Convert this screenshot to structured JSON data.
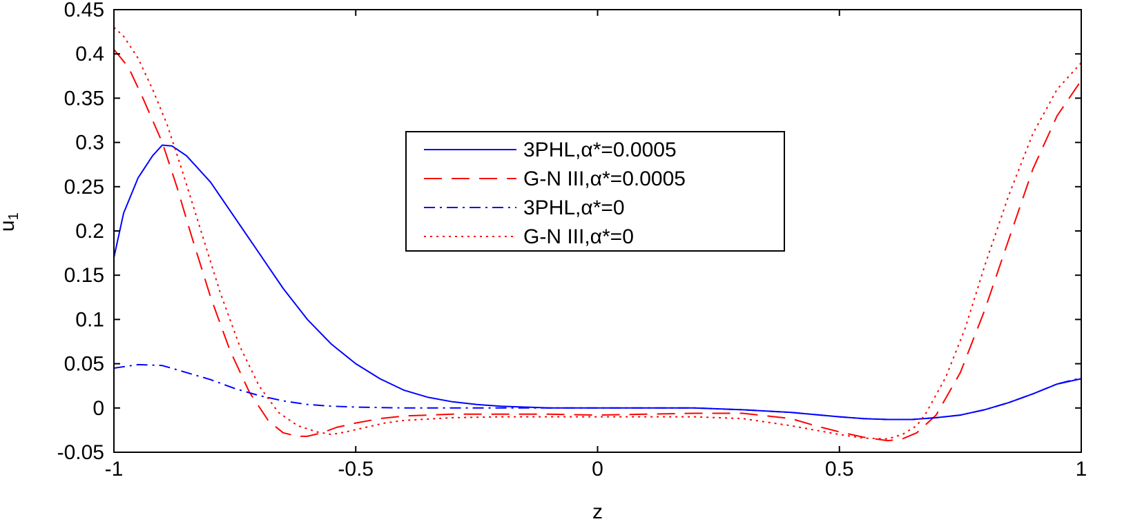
{
  "chart_data": {
    "type": "line",
    "title": "",
    "xlabel": "z",
    "ylabel": "u",
    "ylabel_subscript": "1",
    "xlim": [
      -1,
      1
    ],
    "ylim": [
      -0.05,
      0.45
    ],
    "xticks": [
      -1,
      -0.5,
      0,
      0.5,
      1
    ],
    "xtick_labels": [
      "-1",
      "-0.5",
      "0",
      "0.5",
      "1"
    ],
    "yticks": [
      -0.05,
      0,
      0.05,
      0.1,
      0.15,
      0.2,
      0.25,
      0.3,
      0.35,
      0.4,
      0.45
    ],
    "ytick_labels": [
      "-0.05",
      "0",
      "0.05",
      "0.1",
      "0.15",
      "0.2",
      "0.25",
      "0.3",
      "0.35",
      "0.4",
      "0.45"
    ],
    "grid": false,
    "legend_position": "top-center",
    "series": [
      {
        "name": "3PHL,α*=0.0005",
        "color": "#0000ff",
        "dash": "solid",
        "x": [
          -1,
          -0.98,
          -0.95,
          -0.92,
          -0.9,
          -0.88,
          -0.85,
          -0.8,
          -0.75,
          -0.7,
          -0.65,
          -0.6,
          -0.55,
          -0.5,
          -0.45,
          -0.4,
          -0.35,
          -0.3,
          -0.25,
          -0.2,
          -0.1,
          0,
          0.1,
          0.2,
          0.3,
          0.4,
          0.5,
          0.55,
          0.6,
          0.65,
          0.7,
          0.75,
          0.8,
          0.85,
          0.9,
          0.95,
          1
        ],
        "y": [
          0.17,
          0.22,
          0.26,
          0.285,
          0.297,
          0.296,
          0.285,
          0.255,
          0.215,
          0.175,
          0.135,
          0.1,
          0.072,
          0.05,
          0.033,
          0.02,
          0.012,
          0.007,
          0.004,
          0.002,
          0,
          0,
          0,
          0,
          -0.002,
          -0.005,
          -0.01,
          -0.012,
          -0.013,
          -0.013,
          -0.011,
          -0.008,
          -0.002,
          0.006,
          0.016,
          0.027,
          0.033
        ]
      },
      {
        "name": "G-N III,α*=0.0005",
        "color": "#ff0000",
        "dash": "long-dash",
        "x": [
          -1,
          -0.97,
          -0.94,
          -0.9,
          -0.87,
          -0.84,
          -0.8,
          -0.76,
          -0.72,
          -0.68,
          -0.65,
          -0.62,
          -0.6,
          -0.57,
          -0.54,
          -0.5,
          -0.45,
          -0.4,
          -0.3,
          -0.2,
          -0.1,
          0,
          0.1,
          0.2,
          0.3,
          0.4,
          0.45,
          0.5,
          0.55,
          0.6,
          0.63,
          0.66,
          0.7,
          0.75,
          0.8,
          0.85,
          0.9,
          0.95,
          1
        ],
        "y": [
          0.405,
          0.385,
          0.35,
          0.3,
          0.25,
          0.195,
          0.125,
          0.065,
          0.018,
          -0.015,
          -0.028,
          -0.032,
          -0.032,
          -0.028,
          -0.022,
          -0.017,
          -0.012,
          -0.009,
          -0.007,
          -0.007,
          -0.007,
          -0.008,
          -0.007,
          -0.006,
          -0.006,
          -0.012,
          -0.02,
          -0.027,
          -0.033,
          -0.037,
          -0.035,
          -0.028,
          -0.008,
          0.04,
          0.11,
          0.19,
          0.27,
          0.33,
          0.37
        ]
      },
      {
        "name": "3PHL,α*=0",
        "color": "#0000ff",
        "dash": "dash-dot",
        "x": [
          -1,
          -0.95,
          -0.9,
          -0.85,
          -0.8,
          -0.75,
          -0.7,
          -0.65,
          -0.6,
          -0.55,
          -0.5,
          -0.4,
          -0.3,
          -0.2,
          -0.1,
          0,
          0.1,
          0.2,
          0.3,
          0.4,
          0.5,
          0.55,
          0.6,
          0.65,
          0.7,
          0.75,
          0.8,
          0.85,
          0.9,
          0.95,
          1
        ],
        "y": [
          0.045,
          0.049,
          0.048,
          0.04,
          0.032,
          0.022,
          0.014,
          0.008,
          0.004,
          0.002,
          0.001,
          0,
          0,
          0,
          0,
          0,
          0,
          0,
          -0.002,
          -0.005,
          -0.01,
          -0.012,
          -0.013,
          -0.013,
          -0.011,
          -0.008,
          -0.002,
          0.006,
          0.016,
          0.027,
          0.034
        ]
      },
      {
        "name": "G-N III,α*=0",
        "color": "#ff0000",
        "dash": "dotted",
        "x": [
          -1,
          -0.98,
          -0.95,
          -0.92,
          -0.89,
          -0.86,
          -0.82,
          -0.78,
          -0.74,
          -0.7,
          -0.66,
          -0.62,
          -0.58,
          -0.55,
          -0.52,
          -0.48,
          -0.44,
          -0.4,
          -0.3,
          -0.2,
          -0.1,
          0,
          0.1,
          0.2,
          0.3,
          0.4,
          0.45,
          0.5,
          0.55,
          0.6,
          0.63,
          0.66,
          0.68,
          0.72,
          0.76,
          0.8,
          0.85,
          0.9,
          0.95,
          1
        ],
        "y": [
          0.43,
          0.42,
          0.395,
          0.36,
          0.32,
          0.27,
          0.2,
          0.13,
          0.07,
          0.025,
          -0.005,
          -0.02,
          -0.027,
          -0.03,
          -0.027,
          -0.022,
          -0.017,
          -0.014,
          -0.011,
          -0.01,
          -0.01,
          -0.01,
          -0.01,
          -0.01,
          -0.012,
          -0.02,
          -0.025,
          -0.03,
          -0.034,
          -0.035,
          -0.03,
          -0.02,
          -0.005,
          0.035,
          0.09,
          0.16,
          0.24,
          0.31,
          0.36,
          0.39
        ]
      }
    ]
  }
}
